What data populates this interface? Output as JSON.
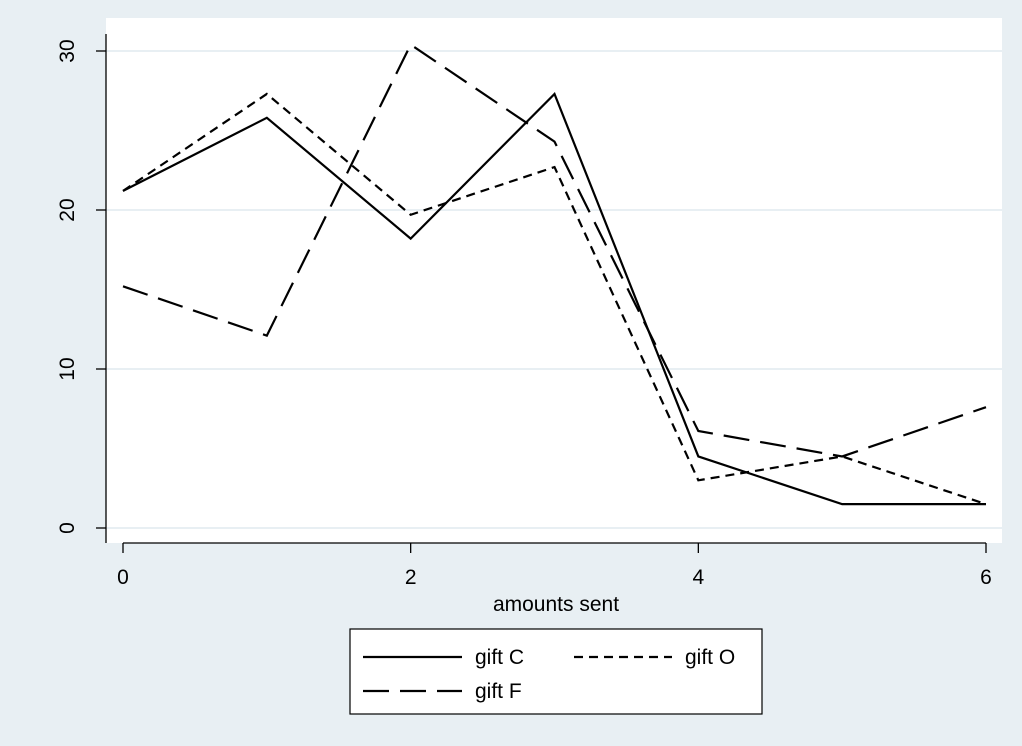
{
  "chart_data": {
    "type": "line",
    "x": [
      0,
      1,
      2,
      3,
      4,
      5,
      6
    ],
    "series": [
      {
        "name": "gift C",
        "values": [
          21.2,
          25.8,
          18.2,
          27.3,
          4.5,
          1.5,
          1.5
        ],
        "dash": "solid"
      },
      {
        "name": "gift O",
        "values": [
          21.2,
          27.3,
          19.7,
          22.7,
          3.0,
          4.5,
          1.5
        ],
        "dash": "short-dash"
      },
      {
        "name": "gift F",
        "values": [
          15.2,
          12.1,
          30.4,
          24.3,
          6.1,
          4.5,
          7.6
        ],
        "dash": "long-dash"
      }
    ],
    "xlabel": "amounts sent",
    "ylabel": "",
    "xlim": [
      0,
      6
    ],
    "ylim": [
      0,
      30
    ],
    "xticks": [
      0,
      2,
      4,
      6
    ],
    "yticks": [
      0,
      10,
      20,
      30
    ],
    "xtick_labels": [
      "0",
      "2",
      "4",
      "6"
    ],
    "ytick_labels": [
      "0",
      "10",
      "20",
      "30"
    ],
    "grid": "horizontal",
    "legend_position": "bottom",
    "colors": {
      "background": "#e8eff3",
      "plot_area": "#ffffff",
      "grid": "#e8eff3",
      "line": "#000000"
    }
  }
}
